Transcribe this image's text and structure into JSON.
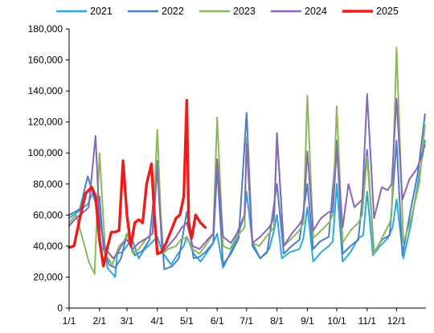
{
  "chart_data": {
    "type": "line",
    "title": "",
    "xlabel": "",
    "ylabel": "",
    "ylim": [
      0,
      180000
    ],
    "yticks": [
      0,
      20000,
      40000,
      60000,
      80000,
      100000,
      120000,
      140000,
      160000,
      180000
    ],
    "ytick_labels": [
      "0",
      "20,000",
      "40,000",
      "60,000",
      "80,000",
      "100,000",
      "120,000",
      "140,000",
      "160,000",
      "180,000"
    ],
    "x_unit": "day of year",
    "xlim": [
      1,
      365
    ],
    "xticks": [
      1,
      32,
      60,
      91,
      121,
      152,
      182,
      213,
      244,
      274,
      305,
      335
    ],
    "xtick_labels": [
      "1/1",
      "2/1",
      "3/1",
      "4/1",
      "5/1",
      "6/1",
      "7/1",
      "8/1",
      "9/1",
      "10/1",
      "11/1",
      "12/1"
    ],
    "grid": false,
    "legend_position": "top",
    "series": [
      {
        "name": "2021",
        "color": "#29a8e0",
        "x": [
          1,
          10,
          20,
          25,
          32,
          40,
          48,
          50,
          55,
          60,
          65,
          72,
          78,
          85,
          91,
          96,
          105,
          112,
          118,
          121,
          128,
          135,
          142,
          148,
          152,
          158,
          165,
          172,
          180,
          182,
          188,
          196,
          205,
          210,
          213,
          218,
          226,
          236,
          240,
          244,
          250,
          258,
          266,
          270,
          274,
          280,
          288,
          296,
          301,
          305,
          311,
          318,
          326,
          331,
          335,
          342,
          350,
          358,
          364
        ],
        "y": [
          58000,
          62000,
          67000,
          74000,
          60000,
          26000,
          20000,
          35000,
          36000,
          40000,
          45000,
          32000,
          38000,
          42000,
          46000,
          36000,
          28000,
          35000,
          40000,
          46000,
          35000,
          30000,
          36000,
          42000,
          48000,
          26000,
          35000,
          45000,
          60000,
          75000,
          42000,
          32000,
          38000,
          50000,
          60000,
          32000,
          36000,
          38000,
          45000,
          65000,
          30000,
          36000,
          40000,
          43000,
          80000,
          30000,
          36000,
          45000,
          47000,
          75000,
          34000,
          40000,
          45000,
          52000,
          70000,
          32000,
          55000,
          85000,
          108000
        ]
      },
      {
        "name": "2022",
        "color": "#4a7ec4",
        "x": [
          1,
          7,
          12,
          20,
          28,
          32,
          36,
          42,
          48,
          54,
          60,
          68,
          76,
          83,
          91,
          98,
          106,
          113,
          121,
          128,
          134,
          140,
          148,
          152,
          158,
          166,
          174,
          182,
          188,
          196,
          203,
          213,
          220,
          228,
          236,
          244,
          250,
          257,
          266,
          274,
          280,
          288,
          296,
          305,
          312,
          320,
          328,
          335,
          341,
          349,
          357,
          364
        ],
        "y": [
          60000,
          62000,
          64000,
          85000,
          68000,
          72000,
          38000,
          28000,
          26000,
          32000,
          48000,
          34000,
          37000,
          44000,
          95000,
          25000,
          27000,
          32000,
          62000,
          32000,
          33000,
          36000,
          42000,
          90000,
          28000,
          35000,
          45000,
          126000,
          40000,
          32000,
          36000,
          80000,
          35000,
          40000,
          44000,
          80000,
          38000,
          43000,
          46000,
          108000,
          35000,
          40000,
          44000,
          102000,
          36000,
          44000,
          47000,
          108000,
          34000,
          62000,
          88000,
          125000
        ]
      },
      {
        "name": "2023",
        "color": "#8db85a",
        "x": [
          1,
          8,
          16,
          21,
          27,
          32,
          38,
          45,
          52,
          57,
          60,
          66,
          72,
          80,
          86,
          91,
          96,
          102,
          110,
          116,
          121,
          127,
          134,
          142,
          148,
          152,
          158,
          165,
          172,
          180,
          182,
          188,
          195,
          202,
          210,
          213,
          220,
          228,
          236,
          240,
          244,
          250,
          258,
          266,
          270,
          274,
          280,
          288,
          296,
          300,
          305,
          312,
          320,
          328,
          330,
          335,
          342,
          350,
          358,
          364
        ],
        "y": [
          55000,
          60000,
          42000,
          30000,
          22000,
          100000,
          35000,
          28000,
          40000,
          43000,
          48000,
          35000,
          38000,
          45000,
          48000,
          115000,
          35000,
          38000,
          40000,
          45000,
          45000,
          38000,
          35000,
          42000,
          48000,
          123000,
          40000,
          38000,
          46000,
          52000,
          110000,
          42000,
          40000,
          46000,
          52000,
          110000,
          40000,
          45000,
          50000,
          55000,
          137000,
          45000,
          50000,
          55000,
          60000,
          130000,
          42000,
          50000,
          55000,
          60000,
          98000,
          35000,
          45000,
          55000,
          60000,
          168000,
          42000,
          58000,
          80000,
          118000
        ]
      },
      {
        "name": "2024",
        "color": "#8866b8",
        "x": [
          1,
          8,
          16,
          21,
          28,
          32,
          38,
          46,
          50,
          56,
          60,
          66,
          72,
          80,
          86,
          91,
          96,
          102,
          110,
          116,
          121,
          127,
          134,
          142,
          148,
          152,
          158,
          166,
          172,
          180,
          182,
          188,
          196,
          205,
          210,
          213,
          220,
          228,
          236,
          240,
          244,
          250,
          258,
          266,
          270,
          274,
          280,
          286,
          292,
          300,
          305,
          312,
          320,
          326,
          330,
          335,
          341,
          348,
          356,
          364
        ],
        "y": [
          53000,
          58000,
          62000,
          65000,
          111000,
          55000,
          38000,
          32000,
          35000,
          42000,
          44000,
          38000,
          42000,
          45000,
          48000,
          90000,
          36000,
          40000,
          46000,
          52000,
          55000,
          40000,
          38000,
          44000,
          48000,
          96000,
          46000,
          42000,
          48000,
          60000,
          106000,
          42000,
          46000,
          52000,
          58000,
          113000,
          40000,
          48000,
          54000,
          58000,
          101000,
          50000,
          58000,
          62000,
          62000,
          103000,
          52000,
          80000,
          65000,
          70000,
          138000,
          58000,
          78000,
          76000,
          80000,
          135000,
          70000,
          83000,
          90000,
          105000
        ]
      },
      {
        "name": "2025",
        "color": "#ee1b1b",
        "width": 3.4,
        "x": [
          1,
          6,
          12,
          18,
          24,
          28,
          32,
          36,
          40,
          44,
          48,
          52,
          56,
          60,
          64,
          68,
          72,
          76,
          80,
          85,
          88,
          91,
          95,
          100,
          105,
          110,
          114,
          118,
          121,
          123,
          126,
          130,
          135,
          140
        ],
        "y": [
          39000,
          40000,
          58000,
          74000,
          78000,
          72000,
          44000,
          27000,
          39000,
          49000,
          49000,
          50000,
          95000,
          60000,
          40000,
          55000,
          57000,
          55000,
          80000,
          93000,
          60000,
          35000,
          36000,
          42000,
          50000,
          58000,
          60000,
          72000,
          134000,
          55000,
          45000,
          60000,
          55000,
          52000
        ]
      }
    ]
  }
}
